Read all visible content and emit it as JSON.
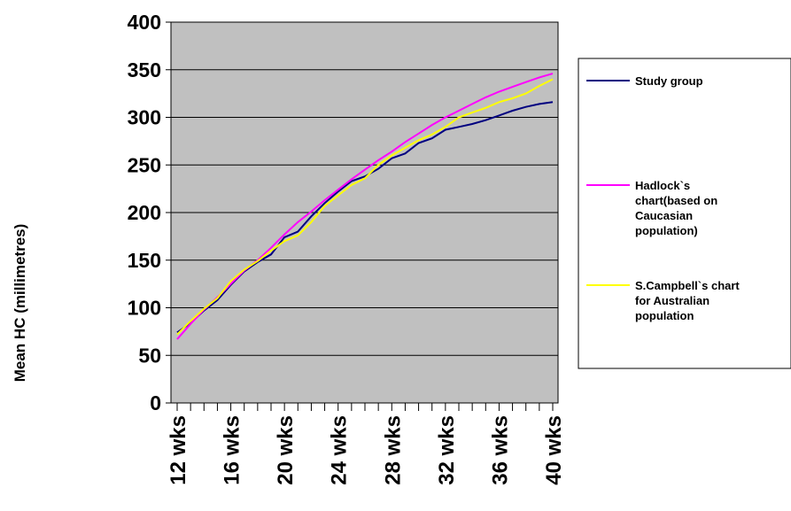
{
  "chart_data": {
    "type": "line",
    "title": "",
    "xlabel": "",
    "ylabel": "Mean HC (millimetres)",
    "ylim": [
      0,
      400
    ],
    "yticks": [
      "0",
      "50",
      "100",
      "150",
      "200",
      "250",
      "300",
      "350",
      "400"
    ],
    "xtick_labels": [
      "12 wks",
      "16 wks",
      "20 wks",
      "24 wks",
      "28 wks",
      "32 wks",
      "36 wks",
      "40 wks"
    ],
    "x": [
      12,
      13,
      14,
      15,
      16,
      17,
      18,
      19,
      20,
      21,
      22,
      23,
      24,
      25,
      26,
      27,
      28,
      29,
      30,
      31,
      32,
      33,
      34,
      35,
      36,
      37,
      38,
      39,
      40
    ],
    "grid": true,
    "legend_position": "right",
    "series": [
      {
        "name": "Study group",
        "color": "#000080",
        "values": [
          74,
          84,
          97,
          108,
          124,
          138,
          148,
          156,
          174,
          180,
          196,
          210,
          222,
          233,
          238,
          246,
          257,
          262,
          273,
          278,
          287,
          290,
          293,
          297,
          302,
          307,
          311,
          314,
          316
        ]
      },
      {
        "name": "Hadlock`s chart(based on Caucasian population)",
        "color": "#ff00ff",
        "values": [
          67,
          83,
          98,
          111,
          125,
          139,
          150,
          163,
          177,
          190,
          201,
          213,
          224,
          235,
          245,
          255,
          264,
          274,
          283,
          292,
          300,
          307,
          314,
          321,
          327,
          332,
          337,
          342,
          346
        ]
      },
      {
        "name": "S.Campbell`s chart for Australian population",
        "color": "#ffff00",
        "values": [
          72,
          86,
          99,
          110,
          128,
          140,
          149,
          160,
          170,
          176,
          190,
          207,
          218,
          229,
          236,
          250,
          260,
          268,
          276,
          282,
          290,
          300,
          305,
          310,
          316,
          320,
          325,
          333,
          340
        ]
      }
    ],
    "legend_lines": [
      [
        "Study group"
      ],
      [
        "Hadlock`s",
        "chart(based on",
        "Caucasian",
        "population)"
      ],
      [
        "S.Campbell`s chart",
        "for Australian",
        "population"
      ]
    ]
  }
}
